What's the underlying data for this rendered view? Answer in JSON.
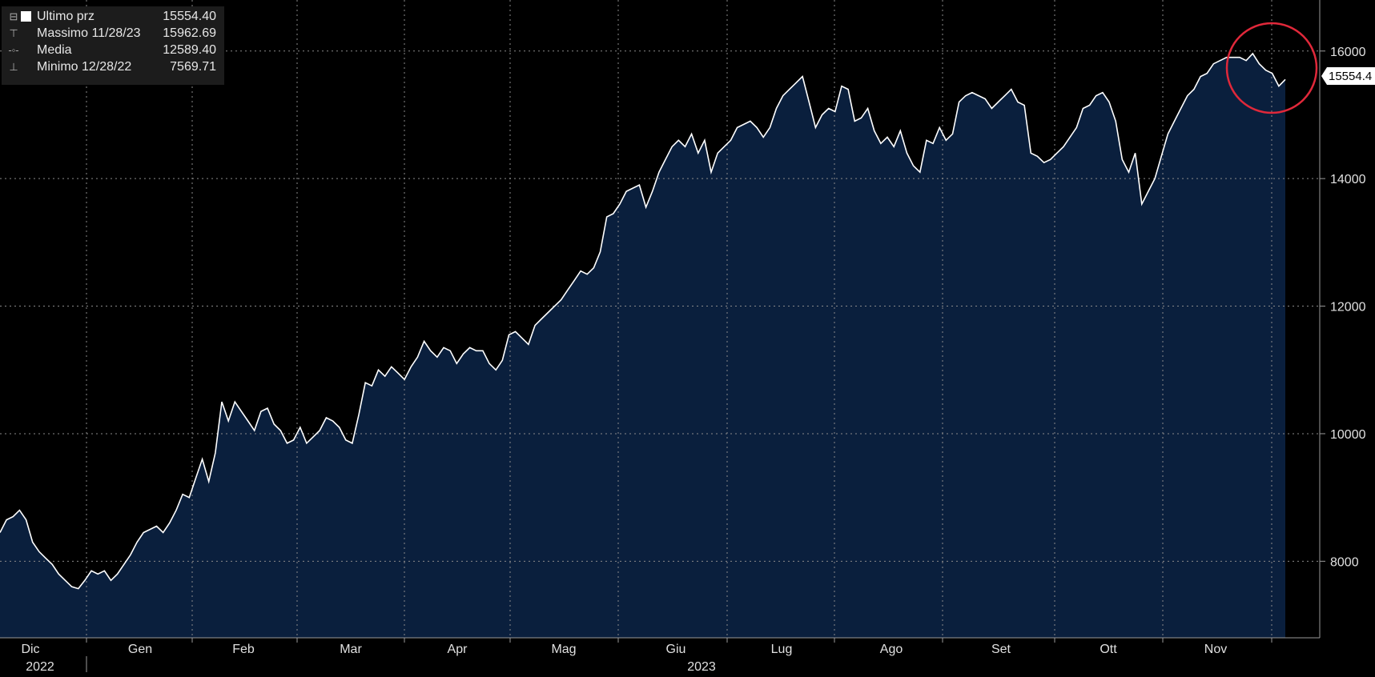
{
  "legend": {
    "items": [
      {
        "marker": "⊟",
        "label": "Ultimo prz",
        "value": "15554.40"
      },
      {
        "marker": "⊤",
        "label": "Massimo 11/28/23",
        "value": "15962.69"
      },
      {
        "marker": "-◦-",
        "label": "Media",
        "value": "12589.40"
      },
      {
        "marker": "⊥",
        "label": "Minimo 12/28/22",
        "value": "7569.71"
      }
    ]
  },
  "last_price_label": "15554.4",
  "colors": {
    "background": "#000000",
    "area_fill": "#0a1f3d",
    "line": "#ffffff",
    "grid": "#8a8a8a",
    "highlight_circle": "#e0283a"
  },
  "chart_data": {
    "type": "area",
    "title": "",
    "xlabel": "",
    "ylabel": "",
    "ylim": [
      6800,
      16800
    ],
    "y_ticks": [
      8000,
      10000,
      12000,
      14000,
      16000
    ],
    "x_tick_labels": [
      "Dic",
      "Gen",
      "Feb",
      "Mar",
      "Apr",
      "Mag",
      "Giu",
      "Lug",
      "Ago",
      "Set",
      "Ott",
      "Nov"
    ],
    "x_year_labels": [
      "2022",
      "2023"
    ],
    "grid": true,
    "last_value": 15554.4,
    "max": {
      "date": "11/28/23",
      "value": 15962.69
    },
    "min": {
      "date": "12/28/22",
      "value": 7569.71
    },
    "mean": 12589.4,
    "series": [
      {
        "values": [
          8450,
          8650,
          8700,
          8800,
          8650,
          8300,
          8150,
          8050,
          7950,
          7800,
          7700,
          7600,
          7570,
          7700,
          7850,
          7800,
          7850,
          7700,
          7800,
          7950,
          8100,
          8300,
          8450,
          8500,
          8550,
          8450,
          8600,
          8800,
          9050,
          9000,
          9300,
          9600,
          9250,
          9700,
          10500,
          10200,
          10500,
          10350,
          10200,
          10050,
          10350,
          10400,
          10150,
          10050,
          9850,
          9900,
          10100,
          9850,
          9950,
          10050,
          10250,
          10200,
          10100,
          9900,
          9850,
          10300,
          10800,
          10750,
          11000,
          10900,
          11050,
          10950,
          10850,
          11050,
          11200,
          11450,
          11300,
          11200,
          11350,
          11300,
          11100,
          11250,
          11350,
          11300,
          11300,
          11100,
          11000,
          11150,
          11550,
          11600,
          11500,
          11400,
          11700,
          11800,
          11900,
          12000,
          12100,
          12250,
          12400,
          12550,
          12500,
          12600,
          12850,
          13400,
          13450,
          13600,
          13800,
          13850,
          13900,
          13550,
          13800,
          14100,
          14300,
          14500,
          14600,
          14500,
          14700,
          14400,
          14600,
          14100,
          14400,
          14500,
          14600,
          14800,
          14850,
          14900,
          14800,
          14650,
          14800,
          15100,
          15300,
          15400,
          15500,
          15600,
          15200,
          14800,
          15000,
          15100,
          15050,
          15450,
          15400,
          14900,
          14950,
          15100,
          14750,
          14550,
          14650,
          14500,
          14750,
          14400,
          14200,
          14100,
          14600,
          14550,
          14800,
          14600,
          14700,
          15200,
          15300,
          15350,
          15300,
          15250,
          15100,
          15200,
          15300,
          15400,
          15200,
          15150,
          14400,
          14350,
          14250,
          14300,
          14400,
          14500,
          14650,
          14800,
          15100,
          15150,
          15300,
          15350,
          15200,
          14900,
          14300,
          14100,
          14400,
          13600,
          13800,
          14000,
          14350,
          14700,
          14900,
          15100,
          15300,
          15400,
          15600,
          15650,
          15800,
          15850,
          15900,
          15900,
          15900,
          15850,
          15960,
          15800,
          15700,
          15650,
          15450,
          15554
        ]
      }
    ]
  }
}
